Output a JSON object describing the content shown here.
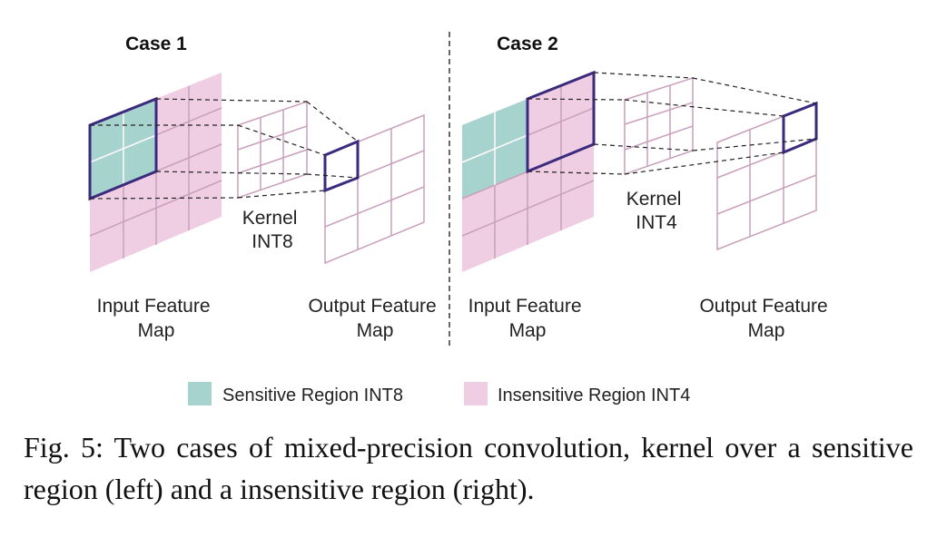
{
  "case_left": {
    "title": "Case 1",
    "input_label": [
      "Input Feature",
      "Map"
    ],
    "kernel_label": [
      "Kernel",
      "INT8"
    ],
    "output_label": [
      "Output Feature",
      "Map"
    ]
  },
  "case_right": {
    "title": "Case 2",
    "input_label": [
      "Input Feature",
      "Map"
    ],
    "kernel_label": [
      "Kernel",
      "INT4"
    ],
    "output_label": [
      "Output Feature",
      "Map"
    ]
  },
  "legend": [
    {
      "label": "Sensitive Region INT8",
      "color": "#a7d3cf"
    },
    {
      "label": "Insensitive Region INT4",
      "color": "#efcde3"
    }
  ],
  "colors": {
    "sensitive": "#a7d3cf",
    "insensitive": "#efcde3",
    "grid_line": "#c9a0bc",
    "highlight": "#3b2a7d",
    "divider": "#333333"
  },
  "caption": "Fig. 5: Two cases of mixed-precision convolution, kernel over a sensitive region (left) and a insensitive region (right)."
}
